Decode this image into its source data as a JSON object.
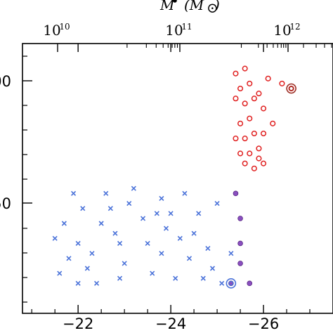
{
  "chart_data": {
    "type": "scatter",
    "title": "",
    "top_axis": {
      "label_main": "M",
      "label_sup": "•",
      "label_unit_open": "(",
      "label_unit": "M",
      "label_unit_sub": "⊙",
      "label_unit_close": ")",
      "ticks": [
        {
          "value": 10,
          "base": "10",
          "exp": "10"
        },
        {
          "value": 11,
          "base": "10",
          "exp": "11"
        },
        {
          "value": 12,
          "base": "10",
          "exp": "12"
        }
      ]
    },
    "bottom_axis": {
      "reversed": true,
      "xlim": [
        -20.8,
        -27.5
      ],
      "major_ticks": [
        -22,
        -24,
        -26
      ],
      "tick_labels": [
        "−22",
        "−24",
        "−26"
      ]
    },
    "left_axis": {
      "visible_labels": [
        "00",
        "50"
      ]
    },
    "series": [
      {
        "marker": "cross",
        "color": "#4a72d9",
        "points": [
          [
            -22.0,
            250
          ],
          [
            -21.6,
            220
          ],
          [
            -22.1,
            285
          ],
          [
            -22.4,
            210
          ],
          [
            -22.8,
            260
          ],
          [
            -23.0,
            230
          ],
          [
            -23.4,
            275
          ],
          [
            -23.8,
            240
          ],
          [
            -24.1,
            215
          ],
          [
            -24.5,
            260
          ],
          [
            -24.9,
            225
          ],
          [
            -25.1,
            210
          ],
          [
            -21.9,
            300
          ],
          [
            -22.6,
            300
          ],
          [
            -23.2,
            305
          ],
          [
            -23.8,
            295
          ],
          [
            -24.3,
            300
          ],
          [
            -21.7,
            270
          ],
          [
            -22.3,
            240
          ],
          [
            -22.9,
            215
          ],
          [
            -23.6,
            220
          ],
          [
            -24.6,
            280
          ],
          [
            -25.0,
            290
          ],
          [
            -21.8,
            235
          ],
          [
            -22.5,
            270
          ],
          [
            -23.1,
            290
          ],
          [
            -23.9,
            265
          ],
          [
            -24.4,
            235
          ],
          [
            -24.8,
            245
          ],
          [
            -21.5,
            255
          ],
          [
            -22.2,
            225
          ],
          [
            -22.7,
            285
          ],
          [
            -23.5,
            250
          ],
          [
            -24.0,
            280
          ],
          [
            -24.7,
            215
          ],
          [
            -25.3,
            240
          ],
          [
            -22.0,
            210
          ],
          [
            -22.9,
            250
          ],
          [
            -23.7,
            280
          ],
          [
            -24.2,
            255
          ]
        ]
      },
      {
        "marker": "circle",
        "color": "#e02020",
        "points": [
          [
            -25.4,
            420
          ],
          [
            -25.5,
            405
          ],
          [
            -25.6,
            390
          ],
          [
            -25.7,
            375
          ],
          [
            -25.8,
            360
          ],
          [
            -25.9,
            345
          ],
          [
            -26.0,
            330
          ],
          [
            -26.1,
            415
          ],
          [
            -25.5,
            370
          ],
          [
            -25.6,
            355
          ],
          [
            -25.7,
            340
          ],
          [
            -25.8,
            325
          ],
          [
            -25.9,
            400
          ],
          [
            -26.0,
            385
          ],
          [
            -26.2,
            370
          ],
          [
            -25.4,
            355
          ],
          [
            -25.5,
            340
          ],
          [
            -25.6,
            425
          ],
          [
            -25.7,
            410
          ],
          [
            -25.8,
            395
          ],
          [
            -26.4,
            410
          ],
          [
            -26.6,
            405
          ],
          [
            -26.0,
            360
          ],
          [
            -25.9,
            335
          ],
          [
            -25.6,
            330
          ],
          [
            -25.4,
            395
          ]
        ]
      },
      {
        "marker": "dot",
        "color": "#8a4fbf",
        "points": [
          [
            -25.4,
            300
          ],
          [
            -25.5,
            275
          ],
          [
            -25.5,
            250
          ],
          [
            -25.5,
            230
          ],
          [
            -25.7,
            210
          ],
          [
            -25.3,
            210
          ]
        ]
      },
      {
        "marker": "open-circle-big",
        "color": "#4a72d9",
        "points": [
          [
            -25.3,
            210
          ]
        ]
      },
      {
        "marker": "open-circle-big",
        "color": "#9a2a20",
        "points": [
          [
            -26.6,
            405
          ]
        ]
      }
    ]
  }
}
